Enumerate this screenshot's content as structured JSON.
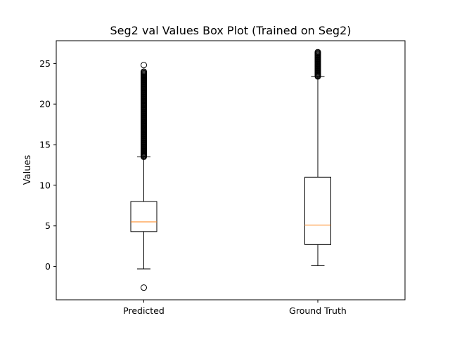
{
  "chart_data": {
    "type": "box",
    "title": "Seg2 val Values Box Plot (Trained on Seg2)",
    "xlabel": "",
    "ylabel": "Values",
    "ylim": [
      -4.1,
      27.8
    ],
    "yticks": [
      0,
      5,
      10,
      15,
      20,
      25
    ],
    "categories": [
      "Predicted",
      "Ground Truth"
    ],
    "grid": false,
    "boxes": [
      {
        "category": "Predicted",
        "whisker_low": -0.3,
        "q1": 4.3,
        "median": 5.5,
        "q3": 8.0,
        "whisker_high": 13.5,
        "outliers_high_range": [
          13.5,
          24.0
        ],
        "outliers": [
          -2.6,
          24.8
        ]
      },
      {
        "category": "Ground Truth",
        "whisker_low": 0.1,
        "q1": 2.7,
        "median": 5.1,
        "q3": 11.0,
        "whisker_high": 23.4,
        "outliers_high_range": [
          23.4,
          26.4
        ],
        "outliers": []
      }
    ],
    "colors": {
      "box": "#000000",
      "median": "#ff7f0e",
      "flier": "#000000"
    }
  }
}
